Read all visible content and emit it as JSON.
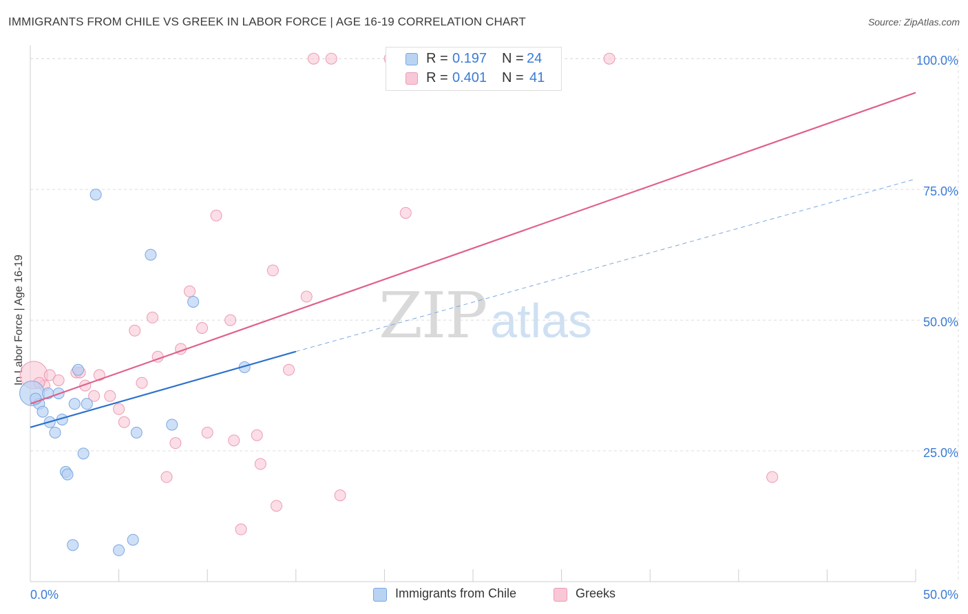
{
  "header": {
    "title": "IMMIGRANTS FROM CHILE VS GREEK IN LABOR FORCE | AGE 16-19 CORRELATION CHART",
    "source": "Source: ZipAtlas.com"
  },
  "watermark": {
    "zip": "ZIP",
    "atlas": "atlas"
  },
  "colors": {
    "chile_fill": "#b9d3f3",
    "chile_stroke": "#7aa6e0",
    "chile_line": "#2b70cc",
    "greek_fill": "#f8c8d6",
    "greek_stroke": "#ec9ab4",
    "greek_line": "#e0608a",
    "tick_text": "#3a7bd5",
    "grid": "#dcdcdc"
  },
  "legend": {
    "chile": {
      "r_label": "R =",
      "r_value": "0.197",
      "n_label": "N =",
      "n_value": "24"
    },
    "greek": {
      "r_label": "R =",
      "r_value": "0.401",
      "n_label": "N =",
      "n_value": "41"
    }
  },
  "chart_data": {
    "type": "scatter",
    "title": "IMMIGRANTS FROM CHILE VS GREEK IN LABOR FORCE | AGE 16-19 CORRELATION CHART",
    "xlabel": "",
    "ylabel": "In Labor Force | Age 16-19",
    "xlim": [
      0,
      50
    ],
    "ylim": [
      0,
      102
    ],
    "x_tick_labels": [
      "0.0%",
      "50.0%"
    ],
    "y_ticks": [
      25,
      50,
      75,
      100
    ],
    "y_tick_labels": [
      "25.0%",
      "50.0%",
      "75.0%",
      "100.0%"
    ],
    "grid": true,
    "legend_position": "top-center",
    "series": [
      {
        "name": "Immigrants from Chile",
        "points": [
          {
            "x": 0.1,
            "y": 36.0,
            "r": 18
          },
          {
            "x": 0.5,
            "y": 34.0
          },
          {
            "x": 0.7,
            "y": 32.5
          },
          {
            "x": 1.0,
            "y": 36.0
          },
          {
            "x": 1.1,
            "y": 30.5
          },
          {
            "x": 1.4,
            "y": 28.5
          },
          {
            "x": 1.6,
            "y": 36.0
          },
          {
            "x": 1.8,
            "y": 31.0
          },
          {
            "x": 2.0,
            "y": 21.0
          },
          {
            "x": 2.1,
            "y": 20.5
          },
          {
            "x": 2.4,
            "y": 7.0
          },
          {
            "x": 2.5,
            "y": 34.0
          },
          {
            "x": 2.7,
            "y": 40.5
          },
          {
            "x": 3.0,
            "y": 24.5
          },
          {
            "x": 3.2,
            "y": 34.0
          },
          {
            "x": 3.7,
            "y": 74.0
          },
          {
            "x": 5.0,
            "y": 6.0
          },
          {
            "x": 5.8,
            "y": 8.0
          },
          {
            "x": 6.0,
            "y": 28.5
          },
          {
            "x": 6.8,
            "y": 62.5
          },
          {
            "x": 8.0,
            "y": 30.0
          },
          {
            "x": 9.2,
            "y": 53.5
          },
          {
            "x": 12.1,
            "y": 41.0
          },
          {
            "x": 0.3,
            "y": 35.0
          }
        ],
        "trend": {
          "x_start": 0,
          "y_start": 29.5,
          "x_solid_end": 15.0,
          "y_solid_end": 44.0,
          "x_dash_end": 50,
          "y_dash_end": 77.0
        }
      },
      {
        "name": "Greeks",
        "points": [
          {
            "x": 0.2,
            "y": 39.5,
            "r": 20
          },
          {
            "x": 0.8,
            "y": 37.5
          },
          {
            "x": 1.1,
            "y": 39.5
          },
          {
            "x": 1.6,
            "y": 38.5
          },
          {
            "x": 2.6,
            "y": 40.0
          },
          {
            "x": 3.1,
            "y": 37.5
          },
          {
            "x": 3.6,
            "y": 35.5
          },
          {
            "x": 3.9,
            "y": 39.5
          },
          {
            "x": 4.5,
            "y": 35.5
          },
          {
            "x": 5.0,
            "y": 33.0
          },
          {
            "x": 5.3,
            "y": 30.5
          },
          {
            "x": 5.9,
            "y": 48.0
          },
          {
            "x": 6.3,
            "y": 38.0
          },
          {
            "x": 6.9,
            "y": 50.5
          },
          {
            "x": 7.2,
            "y": 43.0
          },
          {
            "x": 7.7,
            "y": 20.0
          },
          {
            "x": 8.2,
            "y": 26.5
          },
          {
            "x": 8.5,
            "y": 44.5
          },
          {
            "x": 9.0,
            "y": 55.5
          },
          {
            "x": 9.7,
            "y": 48.5
          },
          {
            "x": 10.0,
            "y": 28.5
          },
          {
            "x": 10.5,
            "y": 70.0
          },
          {
            "x": 11.3,
            "y": 50.0
          },
          {
            "x": 11.5,
            "y": 27.0
          },
          {
            "x": 11.9,
            "y": 10.0
          },
          {
            "x": 12.8,
            "y": 28.0
          },
          {
            "x": 13.0,
            "y": 22.5
          },
          {
            "x": 13.7,
            "y": 59.5
          },
          {
            "x": 13.9,
            "y": 14.5
          },
          {
            "x": 14.6,
            "y": 40.5
          },
          {
            "x": 15.6,
            "y": 54.5
          },
          {
            "x": 16.0,
            "y": 100.0
          },
          {
            "x": 17.0,
            "y": 100.0
          },
          {
            "x": 17.5,
            "y": 16.5
          },
          {
            "x": 20.4,
            "y": 100.0
          },
          {
            "x": 21.2,
            "y": 70.5
          },
          {
            "x": 32.7,
            "y": 100.0
          },
          {
            "x": 41.9,
            "y": 20.0
          },
          {
            "x": 2.8,
            "y": 40.0
          },
          {
            "x": 0.5,
            "y": 38.0
          },
          {
            "x": 20.3,
            "y": 100.0
          }
        ],
        "trend": {
          "x_start": 0,
          "y_start": 34.0,
          "x_end": 50,
          "y_end": 93.5
        }
      }
    ]
  },
  "bottom_legend": {
    "chile": "Immigrants from Chile",
    "greek": "Greeks"
  }
}
